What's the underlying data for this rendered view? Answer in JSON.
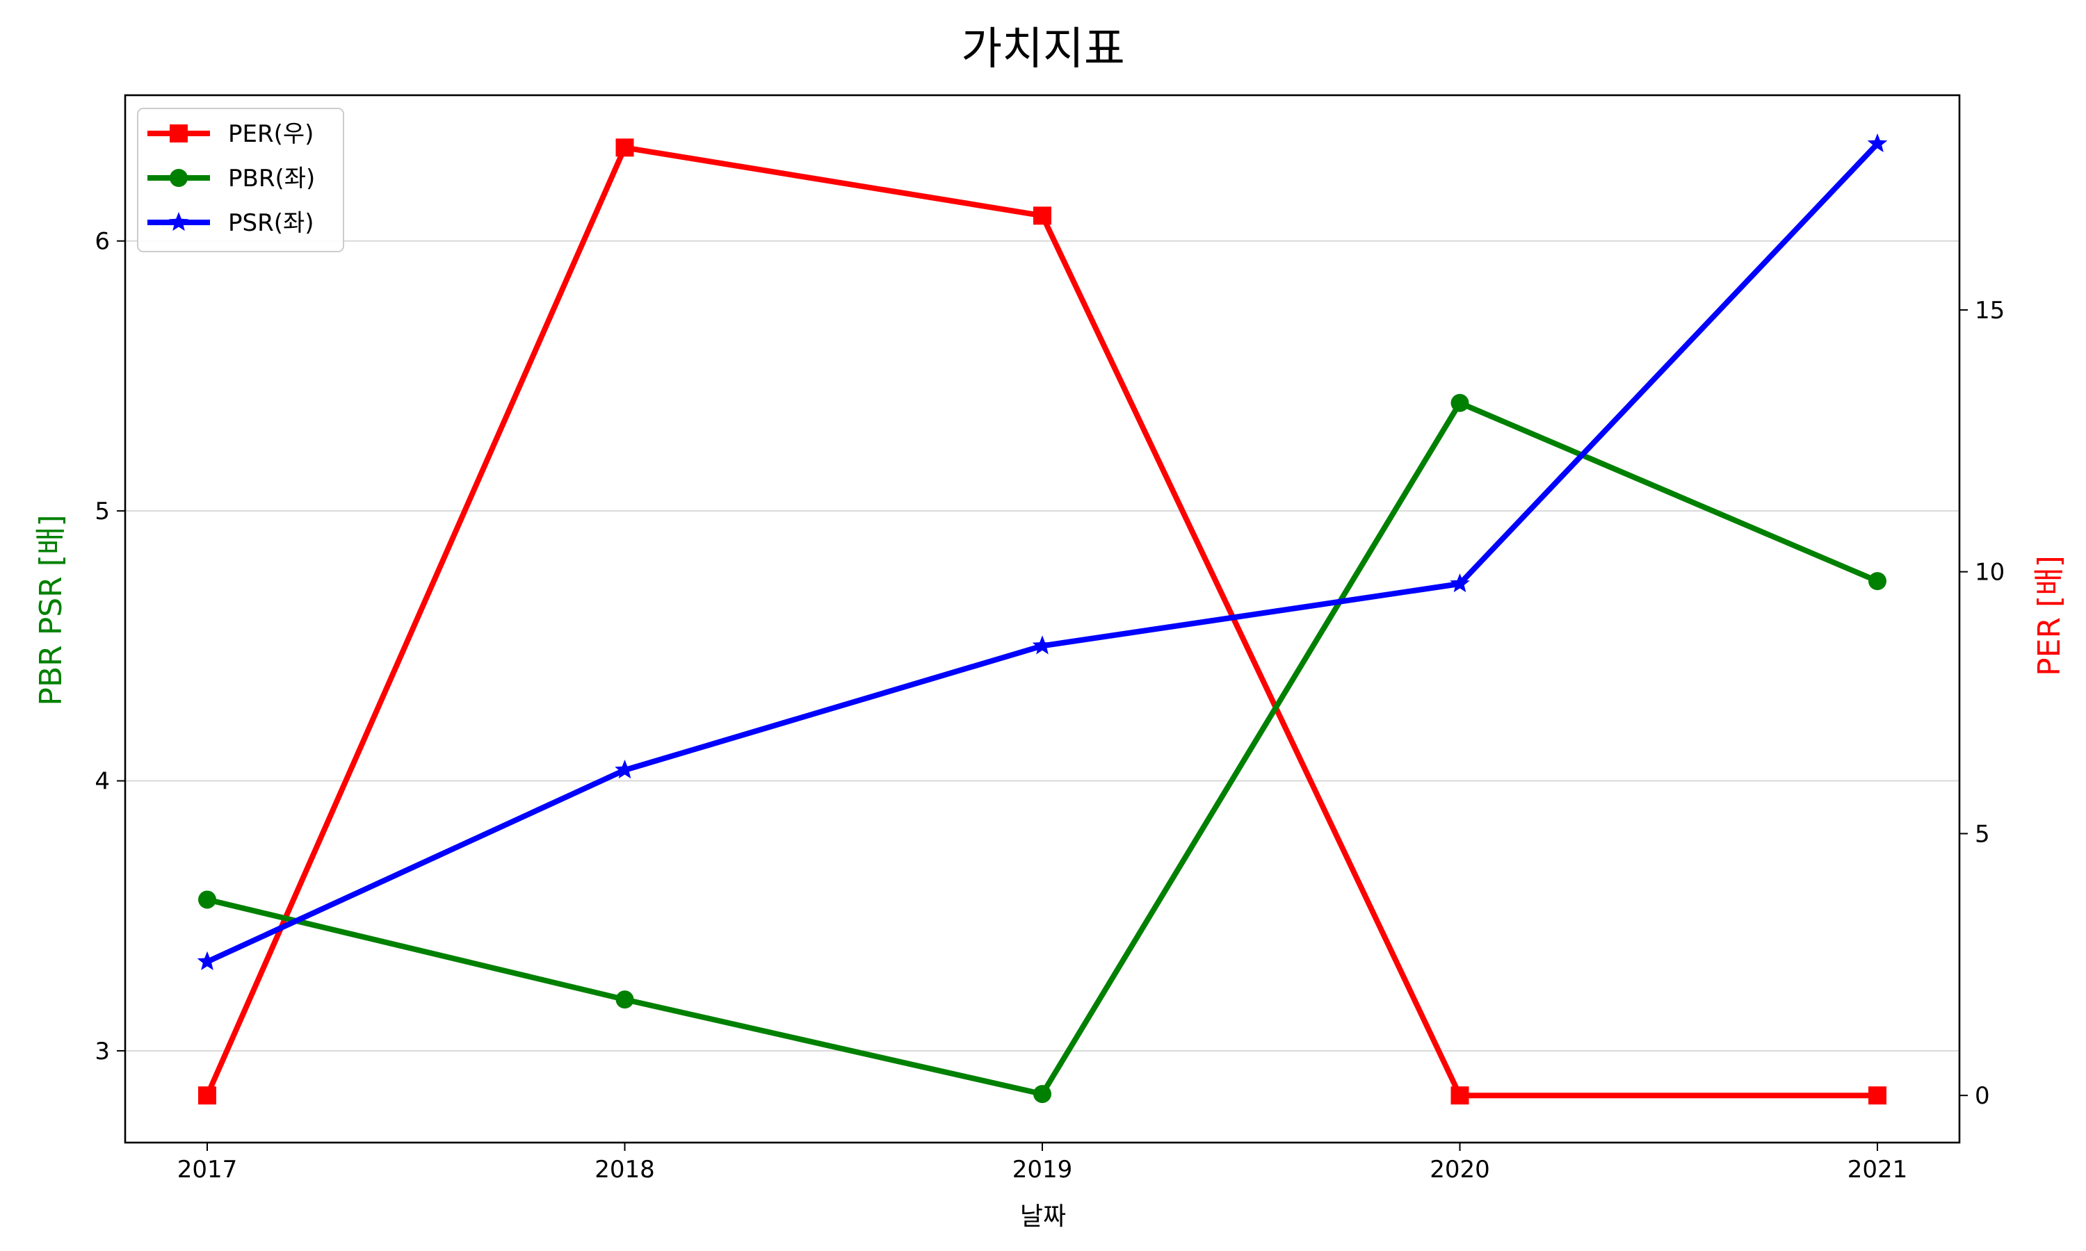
{
  "chart_data": {
    "type": "line",
    "title": "가치지표",
    "xlabel": "날짜",
    "ylabel_left": "PBR PSR [배]",
    "ylabel_right": "PER [배]",
    "categories": [
      "2017",
      "2018",
      "2019",
      "2020",
      "2021"
    ],
    "left_axis": {
      "ylim": [
        2.66,
        6.54
      ],
      "ticks": [
        3,
        4,
        5,
        6
      ]
    },
    "right_axis": {
      "ylim": [
        -0.9,
        19.1
      ],
      "ticks": [
        0,
        5,
        10,
        15
      ]
    },
    "grid": "horizontal (left axis)",
    "legend_position": "top-left",
    "series": [
      {
        "name": "PER(우)",
        "axis": "right",
        "color": "#ff0000",
        "marker": "square",
        "values": [
          0,
          18.1,
          16.8,
          0,
          0
        ]
      },
      {
        "name": "PBR(좌)",
        "axis": "left",
        "color": "#008000",
        "marker": "circle",
        "values": [
          3.56,
          3.19,
          2.84,
          5.4,
          4.74
        ]
      },
      {
        "name": "PSR(좌)",
        "axis": "left",
        "color": "#0000ff",
        "marker": "star",
        "values": [
          3.33,
          4.04,
          4.5,
          4.73,
          6.36
        ]
      }
    ],
    "label_colors": {
      "left": "#008000",
      "right": "#ff0000"
    }
  }
}
